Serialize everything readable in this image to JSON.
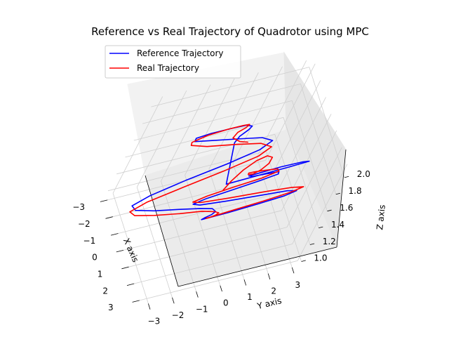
{
  "chart_data": {
    "type": "line",
    "projection": "3d",
    "title": "Reference vs Real Trajectory of Quadrotor using MPC",
    "xlabel": "X axis",
    "ylabel": "Y axis",
    "zlabel": "Z axis",
    "x_ticks": [
      "−3",
      "−2",
      "−1",
      "0",
      "1",
      "2",
      "3"
    ],
    "y_ticks": [
      "−3",
      "−2",
      "−1",
      "0",
      "1",
      "2",
      "3"
    ],
    "z_ticks": [
      "1.0",
      "1.2",
      "1.4",
      "1.6",
      "1.8",
      "2.0"
    ],
    "xlim": [
      -3.3,
      3.3
    ],
    "ylim": [
      -3.3,
      3.3
    ],
    "zlim": [
      0.95,
      2.1
    ],
    "grid": true,
    "legend_position": "top-left",
    "series": [
      {
        "name": "Reference Trajectory",
        "color": "#0000ff",
        "x": [
          0.0,
          0.29,
          0.57,
          0.84,
          1.1,
          1.34,
          1.56,
          1.76,
          1.93,
          2.07,
          2.18,
          2.25,
          2.3,
          2.3,
          2.27,
          2.21,
          2.11,
          1.98,
          1.82,
          1.62,
          1.41,
          1.17,
          0.91,
          0.64,
          0.36,
          0.07,
          -0.22,
          -0.5,
          -0.78,
          -1.04,
          -1.29,
          -1.51,
          -1.71,
          -1.89,
          -2.04,
          -2.15,
          -2.24,
          -2.29,
          -2.3,
          -2.28,
          -2.23,
          -2.14,
          -2.02,
          -1.86,
          -1.68,
          -1.47,
          -1.24,
          -0.99,
          -0.72,
          -0.44,
          -0.15,
          0.0
        ],
        "y": [
          0.0,
          2.33,
          3.03,
          2.56,
          1.47,
          0.43,
          -0.16,
          -0.1,
          0.4,
          0.84,
          0.79,
          0.07,
          -1.06,
          -2.12,
          -2.61,
          -2.22,
          -1.01,
          0.56,
          1.87,
          2.45,
          2.14,
          1.21,
          0.18,
          -0.47,
          -0.56,
          -0.26,
          0.19,
          0.49,
          0.46,
          0.02,
          -0.81,
          -1.79,
          -2.56,
          -2.72,
          -2.01,
          -0.59,
          1.05,
          2.29,
          2.68,
          2.1,
          0.88,
          -0.39,
          -1.2,
          -1.32,
          -0.84,
          -0.15,
          0.35,
          0.48,
          0.22,
          -0.24,
          -0.52,
          0.0
        ],
        "z": [
          1.5,
          1.59,
          1.67,
          1.75,
          1.82,
          1.87,
          1.92,
          1.95,
          1.98,
          2.0,
          2.0,
          1.99,
          1.97,
          1.94,
          1.9,
          1.85,
          1.79,
          1.72,
          1.65,
          1.57,
          1.49,
          1.41,
          1.33,
          1.26,
          1.19,
          1.13,
          1.08,
          1.04,
          1.02,
          1.0,
          1.0,
          1.01,
          1.03,
          1.06,
          1.1,
          1.16,
          1.22,
          1.29,
          1.37,
          1.45,
          1.53,
          1.62,
          1.69,
          1.77,
          1.83,
          1.88,
          1.93,
          1.96,
          1.99,
          2.0,
          2.0,
          1.5
        ]
      },
      {
        "name": "Real Trajectory",
        "color": "#ff0000",
        "x": [
          0.0,
          0.1,
          0.18,
          0.26,
          0.34,
          0.45,
          0.58,
          0.75,
          0.94,
          1.15,
          1.36,
          1.57,
          1.76,
          1.93,
          2.07,
          2.18,
          2.25,
          2.3,
          2.31,
          2.28,
          2.22,
          2.12,
          1.98,
          1.82,
          1.62,
          1.41,
          1.17,
          0.91,
          0.64,
          0.36,
          0.07,
          -0.22,
          -0.5,
          -0.78,
          -1.04,
          -1.29,
          -1.51,
          -1.71,
          -1.89,
          -2.04,
          -2.15,
          -2.24,
          -2.29,
          -2.3,
          -2.28,
          -2.23,
          -2.14,
          -2.02,
          -1.86,
          -1.68,
          -1.47,
          -1.24,
          -0.99,
          -0.72,
          -0.44,
          -0.15,
          0.0
        ],
        "y": [
          0.0,
          0.1,
          0.35,
          0.7,
          1.05,
          1.25,
          1.15,
          0.8,
          0.4,
          0.05,
          -0.1,
          -0.05,
          0.35,
          0.8,
          0.82,
          0.1,
          -1.05,
          -2.15,
          -2.7,
          -2.3,
          -1.05,
          0.55,
          1.9,
          2.55,
          2.22,
          1.25,
          0.2,
          -0.47,
          -0.56,
          -0.26,
          0.19,
          0.49,
          0.46,
          0.02,
          -0.81,
          -1.8,
          -2.6,
          -2.8,
          -2.08,
          -0.62,
          1.05,
          2.35,
          2.78,
          2.2,
          0.95,
          -0.36,
          -1.2,
          -1.32,
          -0.84,
          -0.15,
          0.35,
          0.48,
          0.22,
          -0.24,
          -0.52,
          -0.3,
          0.0
        ],
        "z": [
          1.43,
          1.55,
          1.68,
          1.78,
          1.83,
          1.82,
          1.78,
          1.76,
          1.78,
          1.84,
          1.91,
          1.96,
          1.99,
          2.01,
          2.01,
          2.0,
          1.99,
          1.97,
          1.94,
          1.9,
          1.85,
          1.79,
          1.72,
          1.65,
          1.57,
          1.49,
          1.41,
          1.33,
          1.26,
          1.19,
          1.13,
          1.08,
          1.04,
          1.02,
          1.0,
          1.0,
          1.01,
          1.03,
          1.06,
          1.1,
          1.16,
          1.22,
          1.29,
          1.37,
          1.45,
          1.53,
          1.62,
          1.69,
          1.77,
          1.83,
          1.88,
          1.93,
          1.96,
          1.99,
          2.0,
          2.0,
          2.0
        ]
      }
    ]
  }
}
